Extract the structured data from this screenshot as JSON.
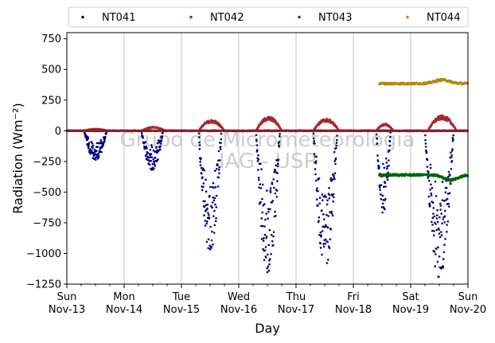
{
  "chart_data": {
    "type": "scatter",
    "xlabel": "Day",
    "ylabel": "Radiation (Wm⁻²)",
    "watermark": [
      "Grupo de Micrometeorologia",
      "IAG - USP"
    ],
    "xlim": [
      0,
      7
    ],
    "ylim": [
      -1250,
      800
    ],
    "yticks": [
      -1250,
      -1000,
      -750,
      -500,
      -250,
      0,
      250,
      500,
      750
    ],
    "ytick_labels": [
      "−1250",
      "−1000",
      "−750",
      "−500",
      "−250",
      "0",
      "250",
      "500",
      "750"
    ],
    "xticks": [
      {
        "x": 0,
        "day": "Sun",
        "date": "Nov-13"
      },
      {
        "x": 1,
        "day": "Mon",
        "date": "Nov-14"
      },
      {
        "x": 2,
        "day": "Tue",
        "date": "Nov-15"
      },
      {
        "x": 3,
        "day": "Wed",
        "date": "Nov-16"
      },
      {
        "x": 4,
        "day": "Thu",
        "date": "Nov-17"
      },
      {
        "x": 5,
        "day": "Fri",
        "date": "Nov-18"
      },
      {
        "x": 6,
        "day": "Sat",
        "date": "Nov-19"
      },
      {
        "x": 7,
        "day": "Sun",
        "date": "Nov-20"
      }
    ],
    "grid": "vertical",
    "legend_position": "top",
    "series": [
      {
        "name": "NT041",
        "color": "#00007f",
        "baseline": 0,
        "dips": [
          {
            "start": 0.3,
            "end": 0.7,
            "min": -240
          },
          {
            "start": 1.3,
            "end": 1.68,
            "min": -330
          },
          {
            "start": 2.3,
            "end": 2.7,
            "min": -1000
          },
          {
            "start": 3.3,
            "end": 3.72,
            "min": -1200
          },
          {
            "start": 4.3,
            "end": 4.72,
            "min": -1120
          },
          {
            "start": 5.4,
            "end": 5.65,
            "min": -680
          },
          {
            "start": 6.25,
            "end": 6.75,
            "min": -1220
          }
        ]
      },
      {
        "name": "NT042",
        "color": "#a52a2a",
        "baseline": 0,
        "bumps": [
          {
            "start": 0.3,
            "end": 0.72,
            "max": 15
          },
          {
            "start": 1.3,
            "end": 1.72,
            "max": 30
          },
          {
            "start": 2.3,
            "end": 2.75,
            "max": 85
          },
          {
            "start": 3.3,
            "end": 3.75,
            "max": 110
          },
          {
            "start": 4.3,
            "end": 4.75,
            "max": 95
          },
          {
            "start": 5.4,
            "end": 5.7,
            "max": 55
          },
          {
            "start": 6.3,
            "end": 6.8,
            "max": 120
          }
        ]
      },
      {
        "name": "NT043",
        "color": "#006400",
        "x_range": [
          5.45,
          7.0
        ],
        "level": -360,
        "bump_center": 6.7,
        "bump_height": -40
      },
      {
        "name": "NT044",
        "color": "#b8860b",
        "x_range": [
          5.45,
          7.0
        ],
        "level": 385,
        "bump_center": 6.55,
        "bump_height": 30
      }
    ]
  }
}
